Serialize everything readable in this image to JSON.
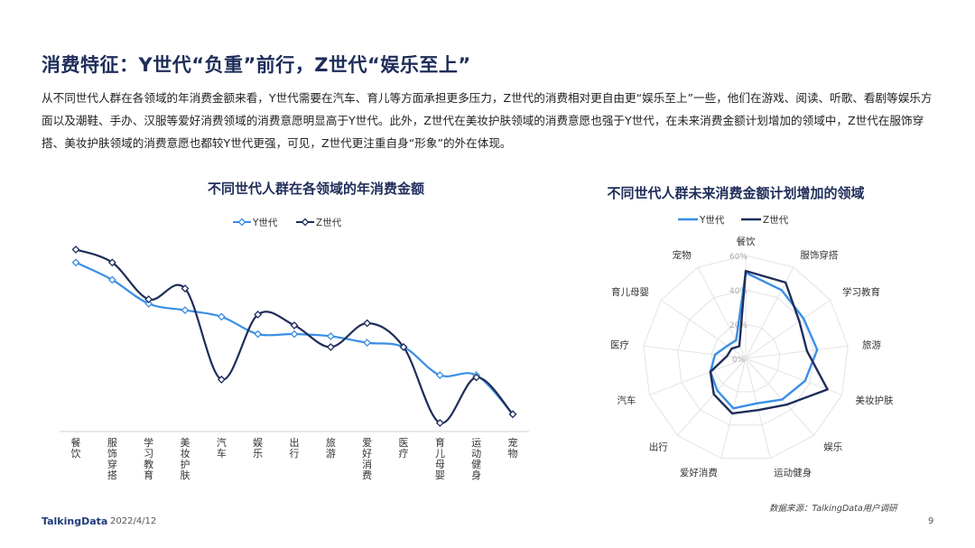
{
  "page": {
    "title": "消费特征：Y世代“负重”前行，Z世代“娱乐至上”",
    "description": "从不同世代人群在各领域的年消费金额来看，Y世代需要在汽车、育儿等方面承担更多压力，Z世代的消费相对更自由更“娱乐至上”一些，他们在游戏、阅读、听歌、看剧等娱乐方面以及潮鞋、手办、汉服等爱好消费领域的消费意愿明显高于Y世代。此外，Z世代在美妆护肤领域的消费意愿也强于Y世代，在未来消费金额计划增加的领域中，Z世代在服饰穿搭、美妆护肤领域的消费意愿也都较Y世代更强，可见，Z世代更注重自身“形象”的外在体现。",
    "source": "数据来源：TalkingData用户调研",
    "footer_logo": "TalkingData",
    "footer_date": "2022/4/12",
    "page_number": "9"
  },
  "colors": {
    "y": "#3a8ee6",
    "z": "#1f2d5a",
    "grid": "#e3e3e3"
  },
  "chart_data": [
    {
      "type": "line",
      "title": "不同世代人群在各领域的年消费金额",
      "categories": [
        "餐饮",
        "服饰穿搭",
        "学习教育",
        "美妆护肤",
        "汽车",
        "娱乐",
        "出行",
        "旅游",
        "爱好消费",
        "医疗",
        "育儿母婴",
        "运动健身",
        "宠物"
      ],
      "series": [
        {
          "name": "Y世代",
          "values": [
            78,
            70,
            59,
            56,
            53,
            45,
            45,
            44,
            41,
            39,
            26,
            26,
            8
          ]
        },
        {
          "name": "Z世代",
          "values": [
            84,
            78,
            61,
            66,
            24,
            54,
            49,
            39,
            50,
            39,
            4,
            25,
            8
          ]
        }
      ],
      "ylim": [
        0,
        100
      ],
      "legend": "top"
    },
    {
      "type": "radar",
      "title": "不同世代人群未来消费金额计划增加的领域",
      "categories": [
        "餐饮",
        "服饰穿搭",
        "学习教育",
        "旅游",
        "美妆护肤",
        "娱乐",
        "运动健身",
        "爱好消费",
        "出行",
        "汽车",
        "医疗",
        "育儿母婴",
        "宠物"
      ],
      "axis_ticks": [
        "0%",
        "20%",
        "40%",
        "60%"
      ],
      "rlim": [
        0,
        60
      ],
      "series": [
        {
          "name": "Y世代",
          "values": [
            50,
            45,
            41,
            42,
            37,
            32,
            27,
            30,
            25,
            22,
            18,
            13,
            12
          ]
        },
        {
          "name": "Z世代",
          "values": [
            51,
            50,
            38,
            36,
            51,
            36,
            31,
            33,
            28,
            22,
            11,
            10,
            8
          ]
        }
      ],
      "legend": "top"
    }
  ]
}
